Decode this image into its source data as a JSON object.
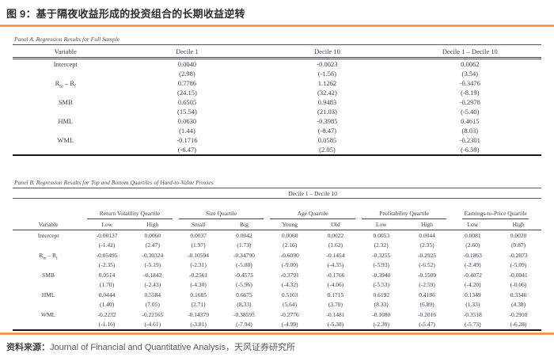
{
  "page": {
    "title": "图 9：基于隔夜收益形成的投资组合的长期收益逆转",
    "source_label": "资料来源：",
    "source_text": "Journal of Financial and Quantitative Analysis，天风证券研究所",
    "accent_color": "#ED7D31"
  },
  "panel_a": {
    "caption": "Panel A. Regression Results for Full Sample",
    "columns": [
      "Variable",
      "Decile 1",
      "Decile 10",
      "Decile 1 – Decile 10"
    ],
    "rows": [
      {
        "label": "Intercept",
        "values": [
          "0.0040",
          "-0.0023",
          "0.0062"
        ],
        "tstats": [
          "(2.98)",
          "(-1.56)",
          "(3.54)"
        ]
      },
      {
        "label": "R_m_ – R_f_",
        "values": [
          "0.7786",
          "1.1262",
          "-0.3476"
        ],
        "tstats": [
          "(24.15)",
          "(32.42)",
          "(-8.19)"
        ]
      },
      {
        "label": "SMB",
        "values": [
          "0.6505",
          "0.9483",
          "-0.2978"
        ],
        "tstats": [
          "(15.54)",
          "(21.03)",
          "(-5.40)"
        ]
      },
      {
        "label": "HML",
        "values": [
          "0.0630",
          "-0.3985",
          "0.4615"
        ],
        "tstats": [
          "(1.44)",
          "(-8.47)",
          "(8.03)"
        ]
      },
      {
        "label": "WML",
        "values": [
          "-0.1716",
          "0.0585",
          "-0.2301"
        ],
        "tstats": [
          "(-6.47)",
          "(2.05)",
          "(-6.59)"
        ]
      }
    ]
  },
  "panel_b": {
    "caption": "Panel B. Regression Results for Top and Bottom Quartiles of Hard-to-Value Proxies",
    "span_header": "Decile 1 – Decile 10",
    "variable_header": "Variable",
    "groups": [
      {
        "label": "Return Volatility Quartile",
        "subs": [
          "Low",
          "High"
        ]
      },
      {
        "label": "Size Quartile",
        "subs": [
          "Small",
          "Big"
        ]
      },
      {
        "label": "Age Quartile",
        "subs": [
          "Young",
          "Old"
        ]
      },
      {
        "label": "Profitability Quartile",
        "subs": [
          "Low",
          "High"
        ]
      },
      {
        "label": "Earnings-to-Price Quartile",
        "subs": [
          "Low",
          "High"
        ]
      }
    ],
    "rows": [
      {
        "label": "Intercept",
        "values": [
          "-0.00137",
          "0.0060",
          "0.0037",
          "0.0042",
          "0.0060",
          "0.0022",
          "0.0053",
          "0.0044",
          "0.0081",
          "0.0020"
        ],
        "tstats": [
          "(-1.42)",
          "(2.47)",
          "(1.97)",
          "(1.73)",
          "(2.16)",
          "(1.62)",
          "(2.32)",
          "(2.35)",
          "(2.60)",
          "(0.87)"
        ]
      },
      {
        "label": "R_m_ – R_f_",
        "values": [
          "-0.05495",
          "-0.30324",
          "-0.10594",
          "-0.34790",
          "-0.6090",
          "-0.1454",
          "-0.3255",
          "-0.2925",
          "-0.1863",
          "-0.2873"
        ],
        "tstats": [
          "(-2.35)",
          "(-5.19)",
          "(-2.31)",
          "(-5.88)",
          "(-9.00)",
          "(-4.35)",
          "(-5.93)",
          "(-6.52)",
          "(-2.49)",
          "(-5.09)"
        ]
      },
      {
        "label": "SMB",
        "values": [
          "0.0514",
          "-0.1843",
          "-0.2561",
          "-0.4575",
          "-0.3791",
          "-0.1766",
          "-0.3940",
          "-0.1509",
          "-0.4072",
          "-0.0041"
        ],
        "tstats": [
          "(1.70)",
          "(-2.43)",
          "(-4.30)",
          "(-5.96)",
          "(-4.32)",
          "(-4.06)",
          "(-5.53)",
          "(-2.59)",
          "(-4.20)",
          "(-0.06)"
        ]
      },
      {
        "label": "HML",
        "values": [
          "0.0444",
          "0.5584",
          "0.1685",
          "0.6675",
          "0.5163",
          "0.1715",
          "0.6192",
          "0.4186",
          "0.1349",
          "0.3346"
        ],
        "tstats": [
          "(1.40)",
          "(7.05)",
          "(2.71)",
          "(8.33)",
          "(5.64)",
          "(3.78)",
          "(8.33)",
          "(6.89)",
          "(1.33)",
          "(4.38)"
        ]
      },
      {
        "label": "WML",
        "values": [
          "-0.2232",
          "-0.22165",
          "-0.14379",
          "-0.38595",
          "-0.2776",
          "-0.1481",
          "-0.1080",
          "-0.2016",
          "-0.3518",
          "-0.2918"
        ],
        "tstats": [
          "(-1.16)",
          "(-4.61)",
          "(-3.81)",
          "(-7.94)",
          "(-4.99)",
          "(-5.38)",
          "(-2.39)",
          "(-5.47)",
          "(-5.73)",
          "(-6.28)"
        ]
      }
    ]
  }
}
